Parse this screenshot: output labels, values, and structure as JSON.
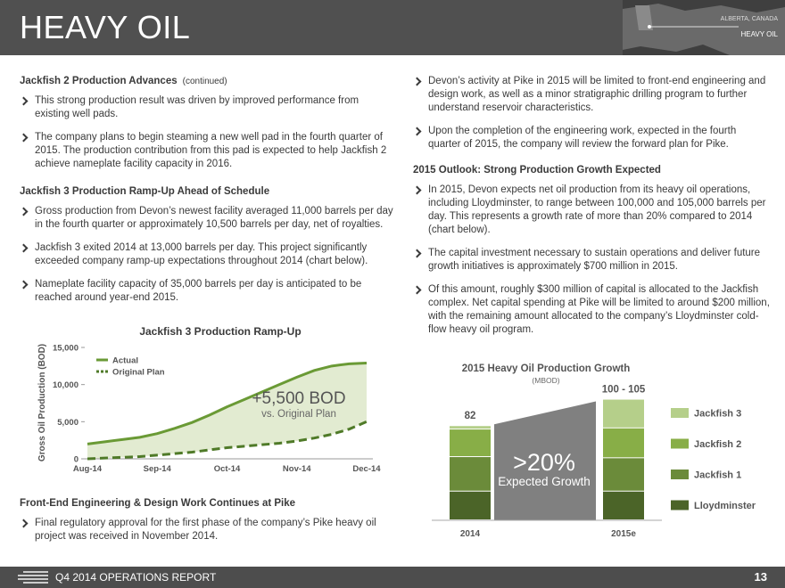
{
  "header": {
    "title": "HEAVY OIL",
    "map_label_1": "ALBERTA, CANADA",
    "map_label_2": "HEAVY OIL"
  },
  "left": {
    "section_1": {
      "heading": "Jackfish 2 Production Advances",
      "heading_note": "(continued)",
      "bullets": [
        "This strong production result was driven by improved performance from existing well pads.",
        "The company plans to begin steaming a new well pad in the fourth quarter of 2015. The production contribution from this pad is expected to help Jackfish 2 achieve nameplate facility capacity in 2016."
      ]
    },
    "section_2": {
      "heading": "Jackfish 3 Production Ramp-Up Ahead of Schedule",
      "bullets": [
        "Gross production from Devon’s newest facility averaged 11,000 barrels per day in the fourth quarter or approximately 10,500 barrels per day, net of royalties.",
        "Jackfish 3 exited 2014 at 13,000 barrels per day. This project significantly exceeded company ramp-up expectations throughout 2014 (chart below).",
        "Nameplate facility capacity of 35,000 barrels per day is anticipated to be reached around year-end 2015."
      ]
    },
    "section_3": {
      "heading": "Front-End Engineering & Design Work Continues at Pike",
      "bullets": [
        "Final regulatory approval for the first phase of the company’s Pike heavy oil project was received in November 2014."
      ]
    }
  },
  "right": {
    "bullets_top": [
      "Devon’s activity at Pike in 2015 will be limited to front-end engineering and design work, as well as a minor stratigraphic drilling program to further understand reservoir characteristics.",
      "Upon the completion of the engineering work, expected in the fourth quarter of 2015, the company will review the forward plan for Pike."
    ],
    "heading": "2015 Outlook: Strong Production Growth Expected",
    "bullets": [
      "In 2015, Devon expects net oil production from its heavy oil operations, including Lloydminster, to range between 100,000 and 105,000 barrels per day. This represents a growth rate of more than 20% compared to 2014 (chart below).",
      "The capital investment necessary to sustain operations and deliver future growth initiatives is approximately $700 million in 2015.",
      "Of this amount, roughly $300 million of capital is allocated to the Jackfish complex. Net capital spending at Pike will be limited to around $200 million, with the remaining amount allocated to the company’s Lloydminster cold-flow heavy oil program."
    ]
  },
  "chart_data": [
    {
      "type": "line",
      "title": "Jackfish 3 Production Ramp-Up",
      "y_label": "Gross Oil Production (BOD)",
      "categories": [
        "Aug-14",
        null,
        null,
        null,
        "Sep-14",
        null,
        null,
        null,
        "Oct-14",
        null,
        null,
        null,
        "Nov-14",
        null,
        null,
        null,
        "Dec-14"
      ],
      "ylim": [
        0,
        15000
      ],
      "yticks": [
        0,
        {
          "value": 5000,
          "label": "5,000"
        },
        {
          "value": 10000,
          "label": "10,000"
        },
        {
          "value": 15000,
          "label": "15,000"
        }
      ],
      "series": [
        {
          "name": "Actual",
          "color": "#6a9a35",
          "dashed": false,
          "values": [
            2000,
            2300,
            2600,
            2900,
            3400,
            4100,
            4900,
            5900,
            7000,
            8000,
            9000,
            10000,
            11000,
            11900,
            12500,
            12800,
            12900
          ]
        },
        {
          "name": "Original Plan",
          "color": "#4f7a28",
          "dashed": true,
          "values": [
            0,
            100,
            200,
            300,
            500,
            700,
            900,
            1200,
            1500,
            1700,
            1900,
            2100,
            2400,
            2800,
            3300,
            4000,
            5000
          ]
        }
      ],
      "area_fill": "#dfe9cc",
      "annotation": "+5,500 BOD",
      "annotation_sub": "vs. Original Plan"
    },
    {
      "type": "stacked_bar",
      "title": "2015 Heavy Oil Production Growth",
      "subtitle": "(MBOD)",
      "categories": [
        "2014",
        "2015e"
      ],
      "total_labels": [
        "82",
        "100 - 105"
      ],
      "series": [
        {
          "name": "Lloydminster",
          "color": "#4b6428",
          "values": [
            25,
            25
          ]
        },
        {
          "name": "Jackfish 1",
          "color": "#6b8b3a",
          "values": [
            30,
            29
          ]
        },
        {
          "name": "Jackfish 2",
          "color": "#88ae47",
          "values": [
            24,
            26
          ]
        },
        {
          "name": "Jackfish 3",
          "color": "#b5cf8a",
          "values": [
            3,
            25
          ]
        }
      ],
      "growth_label": ">20%",
      "growth_sub": "Expected Growth",
      "growth_color": "#808080"
    }
  ],
  "footer": {
    "report": "Q4 2014 OPERATIONS REPORT",
    "page": "13"
  }
}
